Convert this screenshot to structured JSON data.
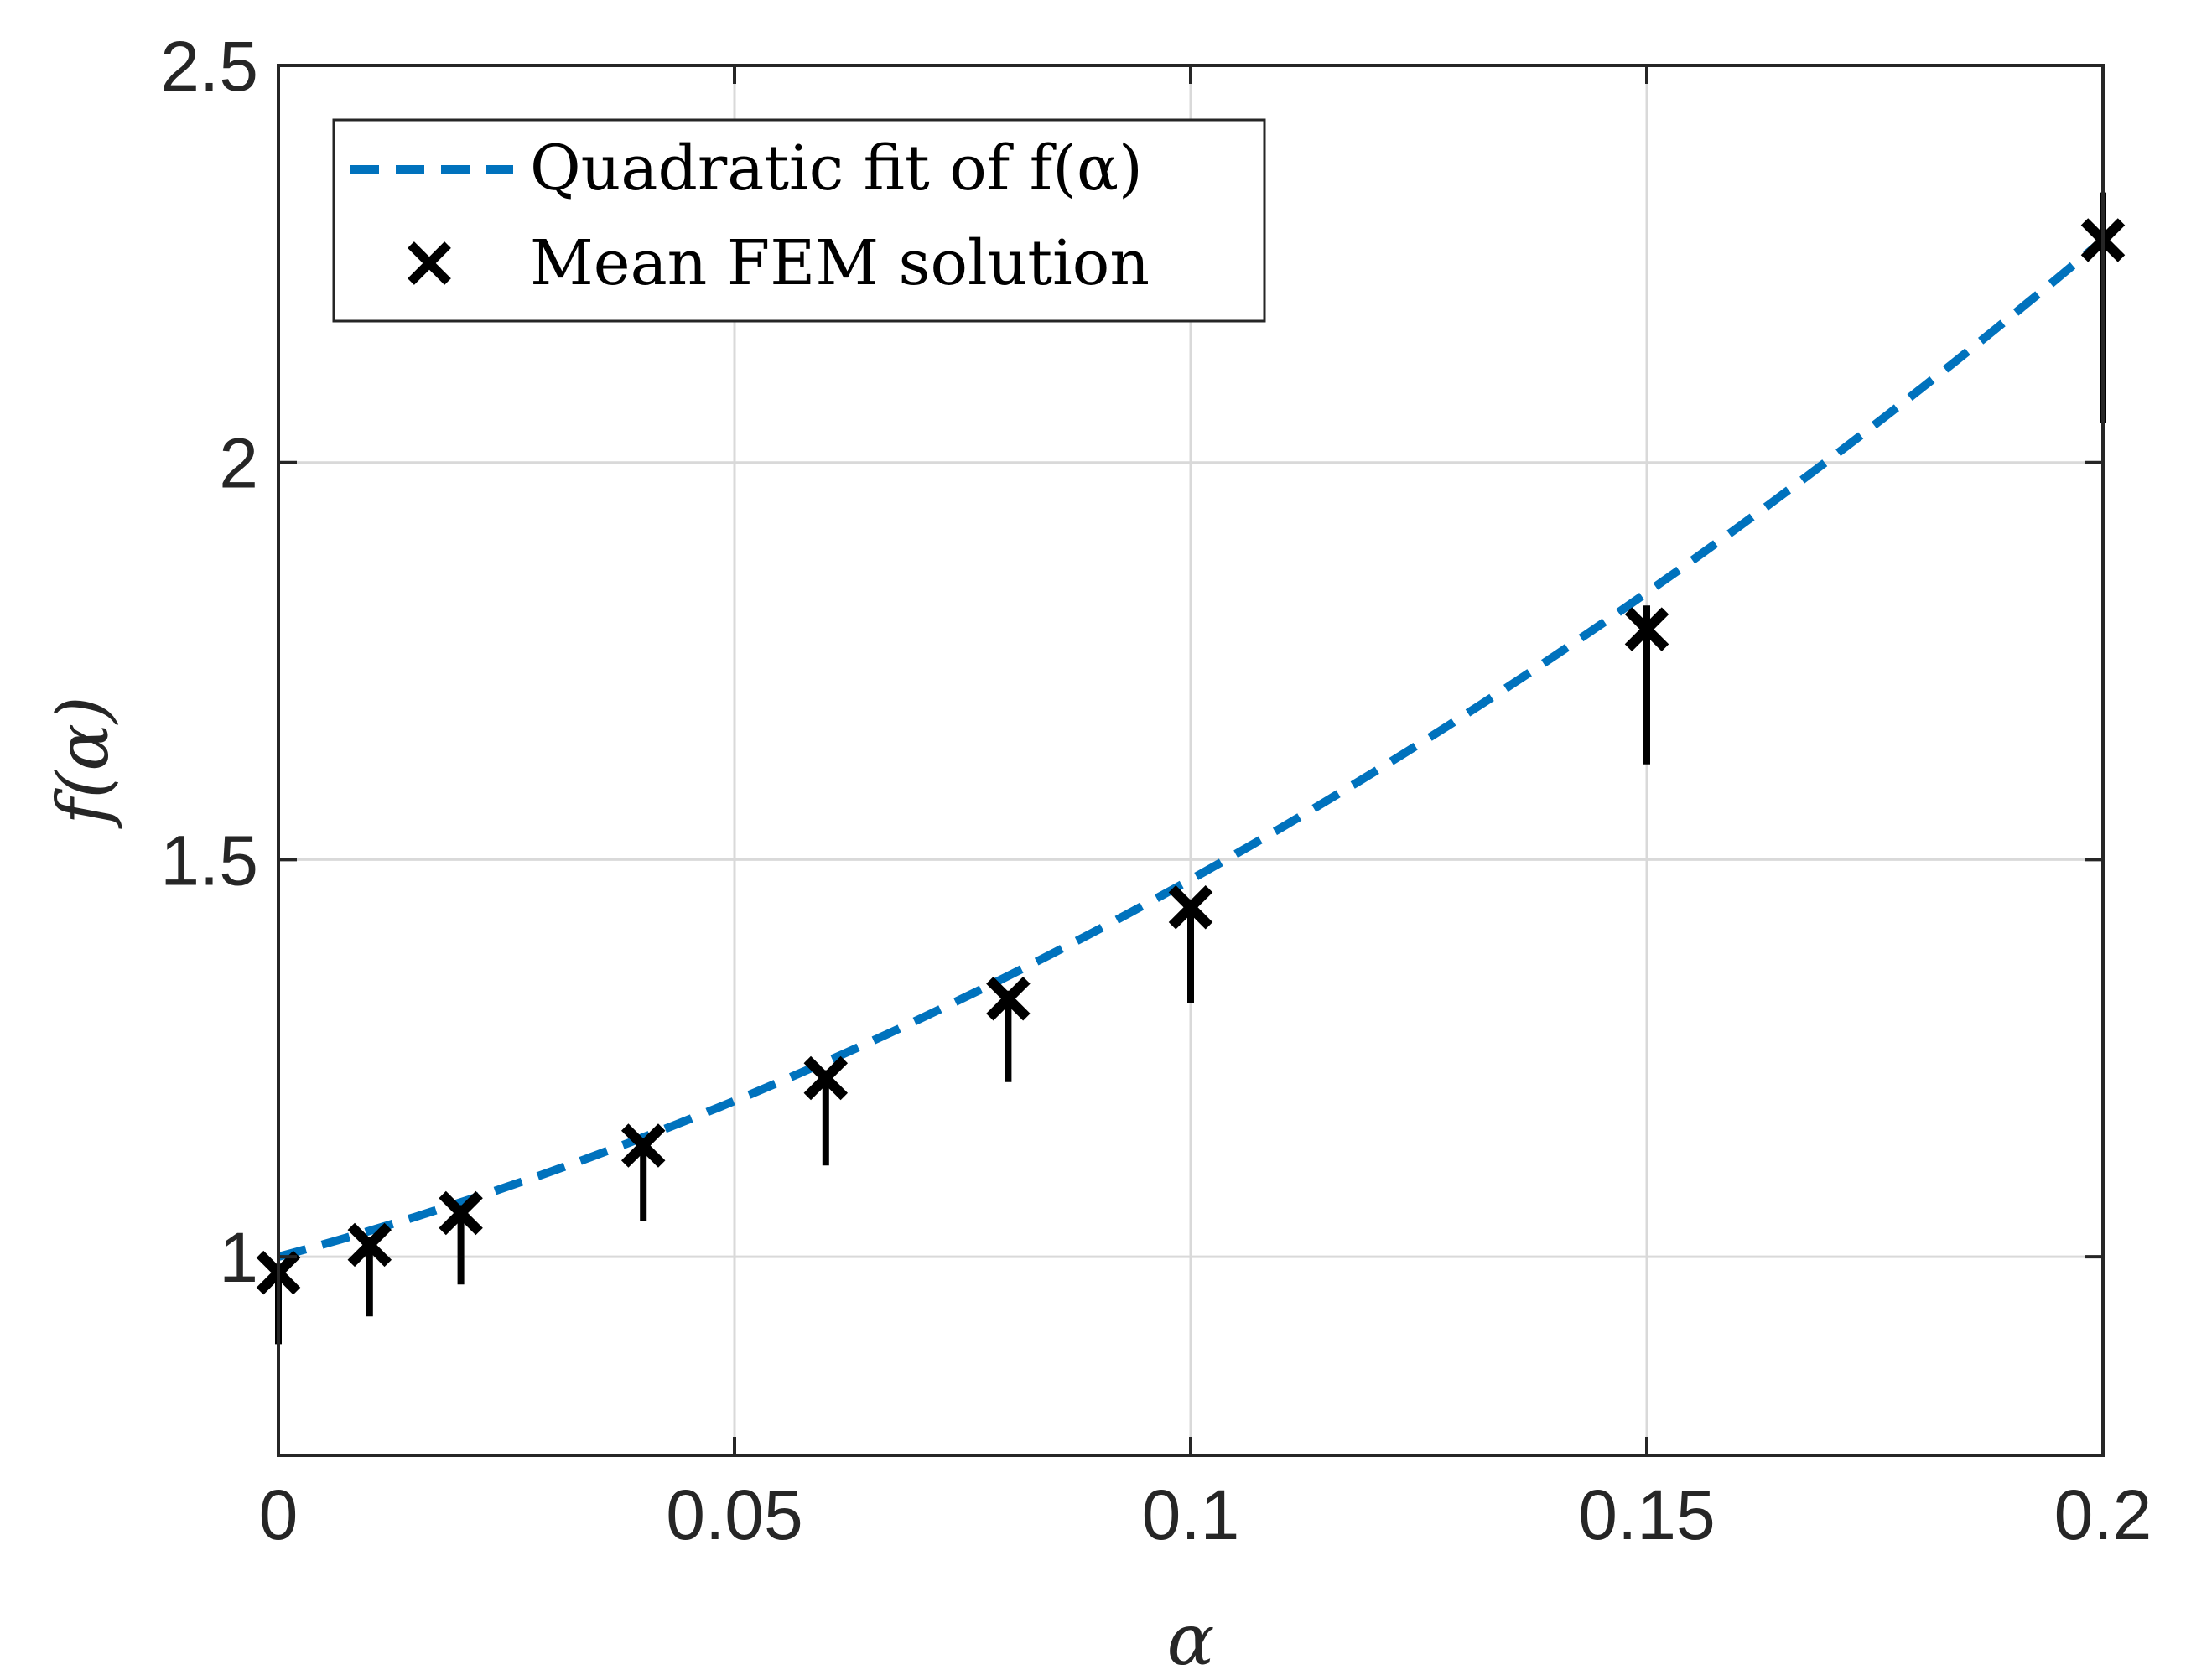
{
  "chart_data": {
    "type": "line",
    "xlabel": "α",
    "ylabel": "f(α)",
    "xlim": [
      0,
      0.2
    ],
    "ylim": [
      0.75,
      2.5
    ],
    "grid": true,
    "xticks": [
      0,
      0.05,
      0.1,
      0.15,
      0.2
    ],
    "xtick_labels": [
      "0",
      "0.05",
      "0.1",
      "0.15",
      "0.2"
    ],
    "yticks": [
      1,
      1.5,
      2,
      2.5
    ],
    "ytick_labels": [
      "1",
      "1.5",
      "2",
      "2.5"
    ],
    "legend_position": "top-left",
    "series": [
      {
        "name": "Quadratic fit of f(α)",
        "style": "dashed-line",
        "color": "#0072BD",
        "coefficients": [
          1.0,
          3.1,
          16.5
        ],
        "x_range": [
          0,
          0.2
        ]
      },
      {
        "name": "Mean FEM solution",
        "style": "x-marker-errorbar",
        "color": "#000000",
        "x": [
          0,
          0.01,
          0.02,
          0.04,
          0.06,
          0.08,
          0.1,
          0.15,
          0.2
        ],
        "y": [
          0.98,
          1.015,
          1.055,
          1.14,
          1.225,
          1.325,
          1.44,
          1.79,
          2.28
        ],
        "err_low": [
          0.09,
          0.09,
          0.09,
          0.095,
          0.11,
          0.105,
          0.12,
          0.17,
          0.23
        ],
        "err_high": [
          0.01,
          0.01,
          0.01,
          0.01,
          0.01,
          0.01,
          0.01,
          0.03,
          0.06
        ]
      }
    ]
  },
  "legend": {
    "fit_label": "Quadratic fit of f(α)",
    "fem_label": "Mean FEM solution"
  }
}
